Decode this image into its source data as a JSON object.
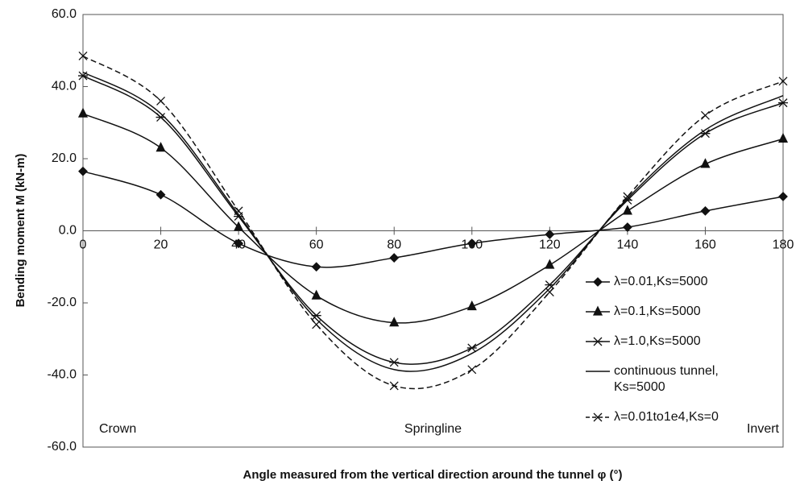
{
  "chart_data": {
    "type": "line",
    "x_label": "Angle measured from the vertical direction around the tunnel  φ (°)",
    "y_label": "Bending moment M (kN-m)",
    "x": [
      0,
      20,
      40,
      60,
      80,
      100,
      120,
      140,
      160,
      180
    ],
    "xlim": [
      0,
      180
    ],
    "xticks": [
      0,
      20,
      40,
      60,
      80,
      100,
      120,
      140,
      160,
      180
    ],
    "ylim": [
      -60,
      60
    ],
    "yticks": [
      {
        "value": -60,
        "label": "-60.0"
      },
      {
        "value": -40,
        "label": "-40.0"
      },
      {
        "value": -20,
        "label": "-20.0"
      },
      {
        "value": 0,
        "label": "0.0"
      },
      {
        "value": 20,
        "label": "20.0"
      },
      {
        "value": 40,
        "label": "40.0"
      },
      {
        "value": 60,
        "label": "60.0"
      }
    ],
    "annotations": [
      "Crown",
      "Springline",
      "Invert"
    ],
    "legend": "right",
    "series": [
      {
        "name": "λ=0.01,Ks=5000",
        "color": "#111",
        "marker": "diamond",
        "dash": false,
        "values": [
          16.5,
          10,
          -3.5,
          -10,
          -7.5,
          -3.5,
          -1,
          1,
          5.5,
          9.5
        ]
      },
      {
        "name": "λ=0.1,Ks=5000",
        "color": "#111",
        "marker": "triangle",
        "dash": false,
        "values": [
          32.5,
          23,
          1,
          -18,
          -25.5,
          -21,
          -9.5,
          5.5,
          18.5,
          25.5
        ]
      },
      {
        "name": "λ=1.0,Ks=5000",
        "color": "#111",
        "marker": "asterisk",
        "dash": false,
        "values": [
          43,
          31.5,
          4,
          -23.5,
          -36.5,
          -32.5,
          -15,
          8.5,
          27,
          35.5
        ]
      },
      {
        "name": "continuous tunnel, Ks=5000",
        "color": "#111",
        "marker": "none",
        "dash": false,
        "values": [
          44,
          32.5,
          4.5,
          -24.5,
          -38.5,
          -34,
          -16,
          9,
          28,
          37.5
        ]
      },
      {
        "name": "λ=0.01to1e4,Ks=0",
        "color": "#111",
        "marker": "x",
        "dash": true,
        "values": [
          48.5,
          36,
          5.5,
          -26,
          -43,
          -38.5,
          -17,
          9.5,
          32,
          41.5
        ]
      }
    ]
  }
}
